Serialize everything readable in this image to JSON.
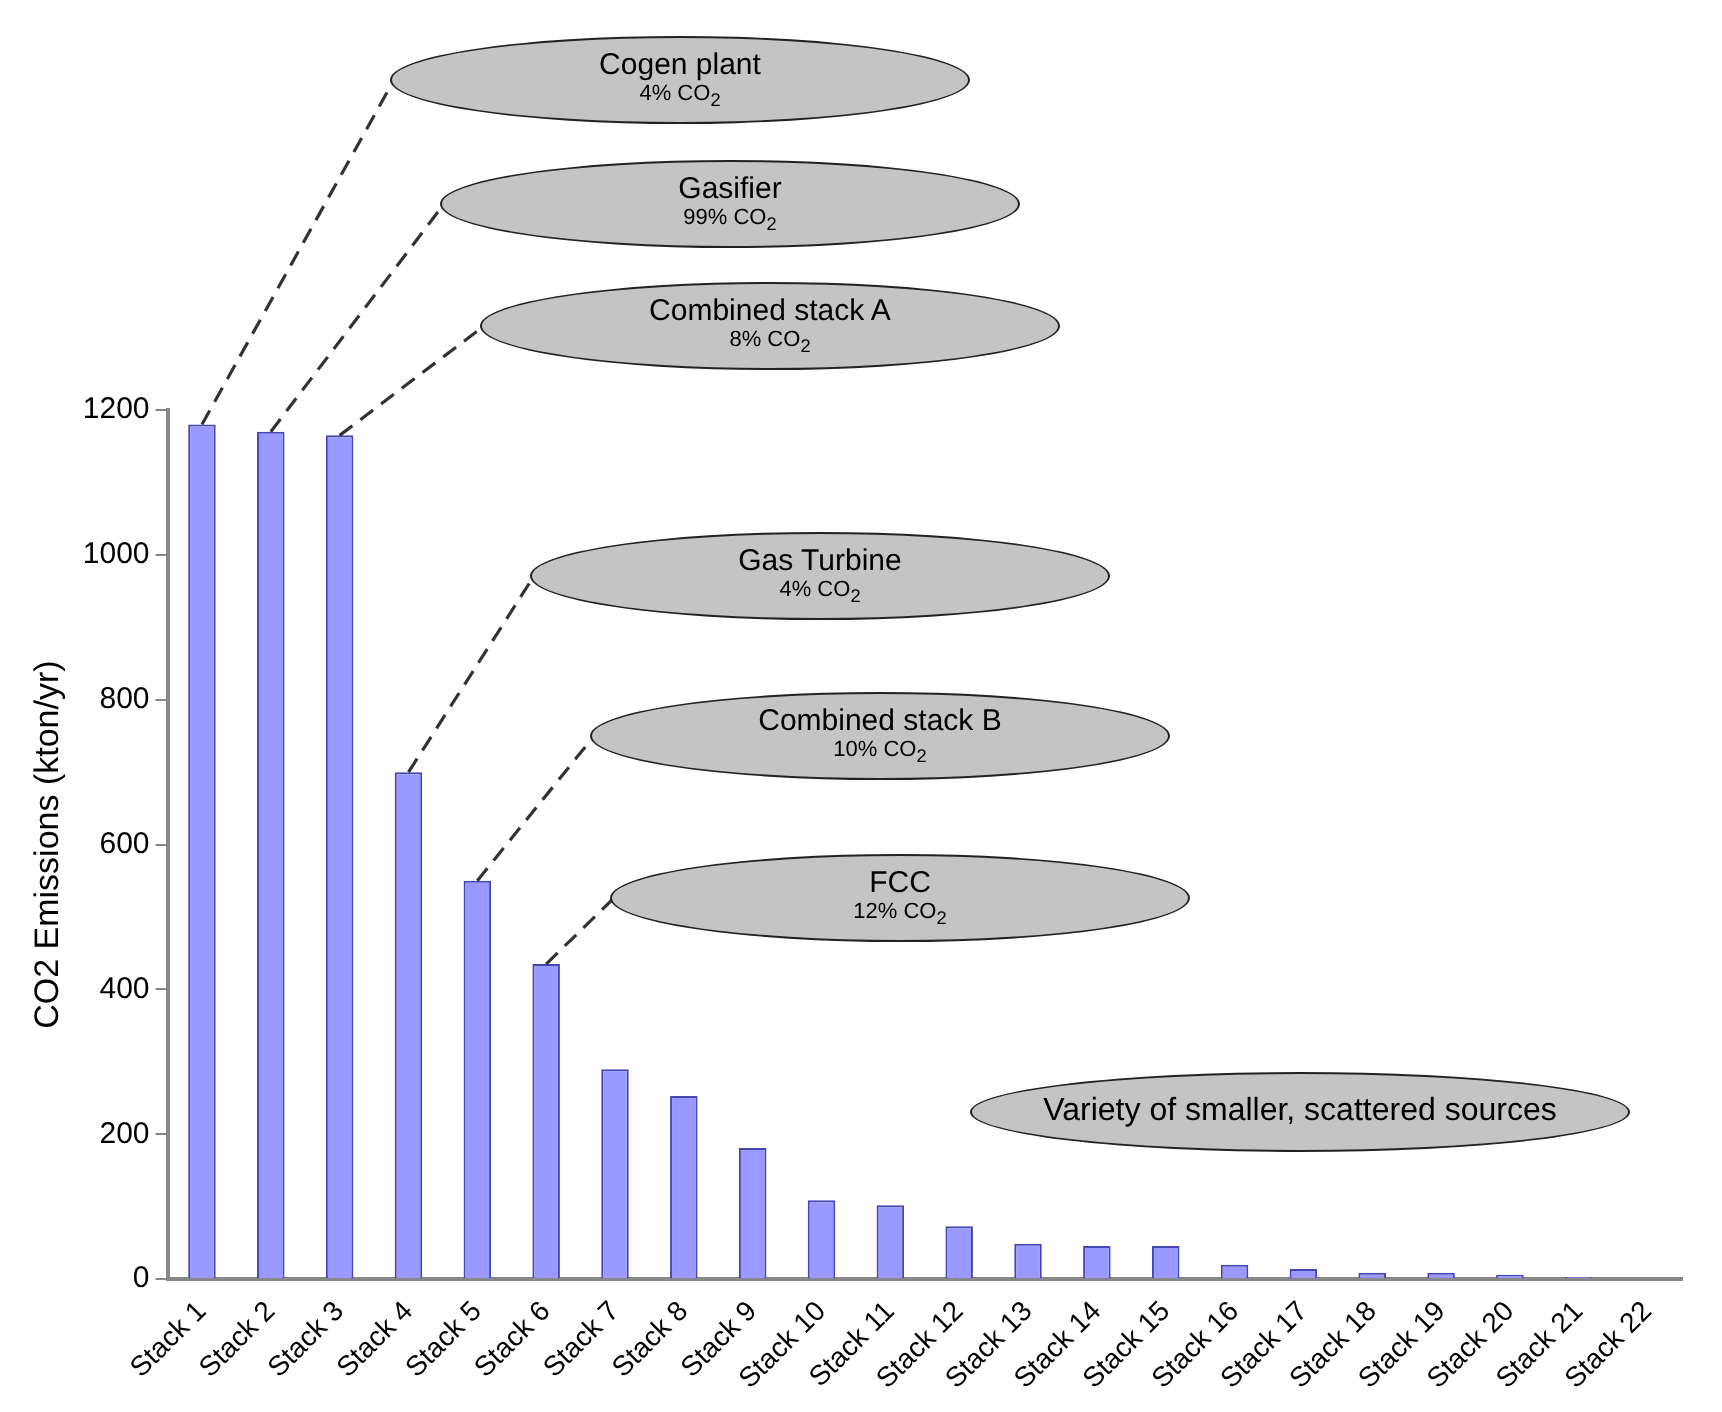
{
  "chart_data": {
    "type": "bar",
    "ylabel": "CO2 Emissions (kton/yr)",
    "categories": [
      "Stack 1",
      "Stack 2",
      "Stack 3",
      "Stack 4",
      "Stack 5",
      "Stack 6",
      "Stack 7",
      "Stack 8",
      "Stack 9",
      "Stack 10",
      "Stack 11",
      "Stack 12",
      "Stack 13",
      "Stack 14",
      "Stack 15",
      "Stack 16",
      "Stack 17",
      "Stack 18",
      "Stack 19",
      "Stack 20",
      "Stack 21",
      "Stack 22"
    ],
    "values": [
      1180,
      1170,
      1165,
      700,
      550,
      435,
      290,
      253,
      181,
      109,
      102,
      73,
      49,
      46,
      46,
      20,
      14,
      9,
      9,
      6,
      3,
      null
    ],
    "color": "#9999ff",
    "ylim": [
      0,
      1200
    ],
    "yticks": [
      0,
      200,
      400,
      600,
      800,
      1000,
      1200
    ],
    "grid": false,
    "legend": false,
    "annotations": [
      "Cogen plant\n4% CO$_{2}$",
      "Gasifier\n99% CO$_{2}$",
      "Combined stack A\n8% CO$_{2}$",
      "Gas Turbine\n4% CO$_{2}$",
      "Combined stack B\n10% CO$_{2}$",
      "FCC\n12% CO$_{2}$",
      "Variety of smaller, scattered sources"
    ]
  }
}
